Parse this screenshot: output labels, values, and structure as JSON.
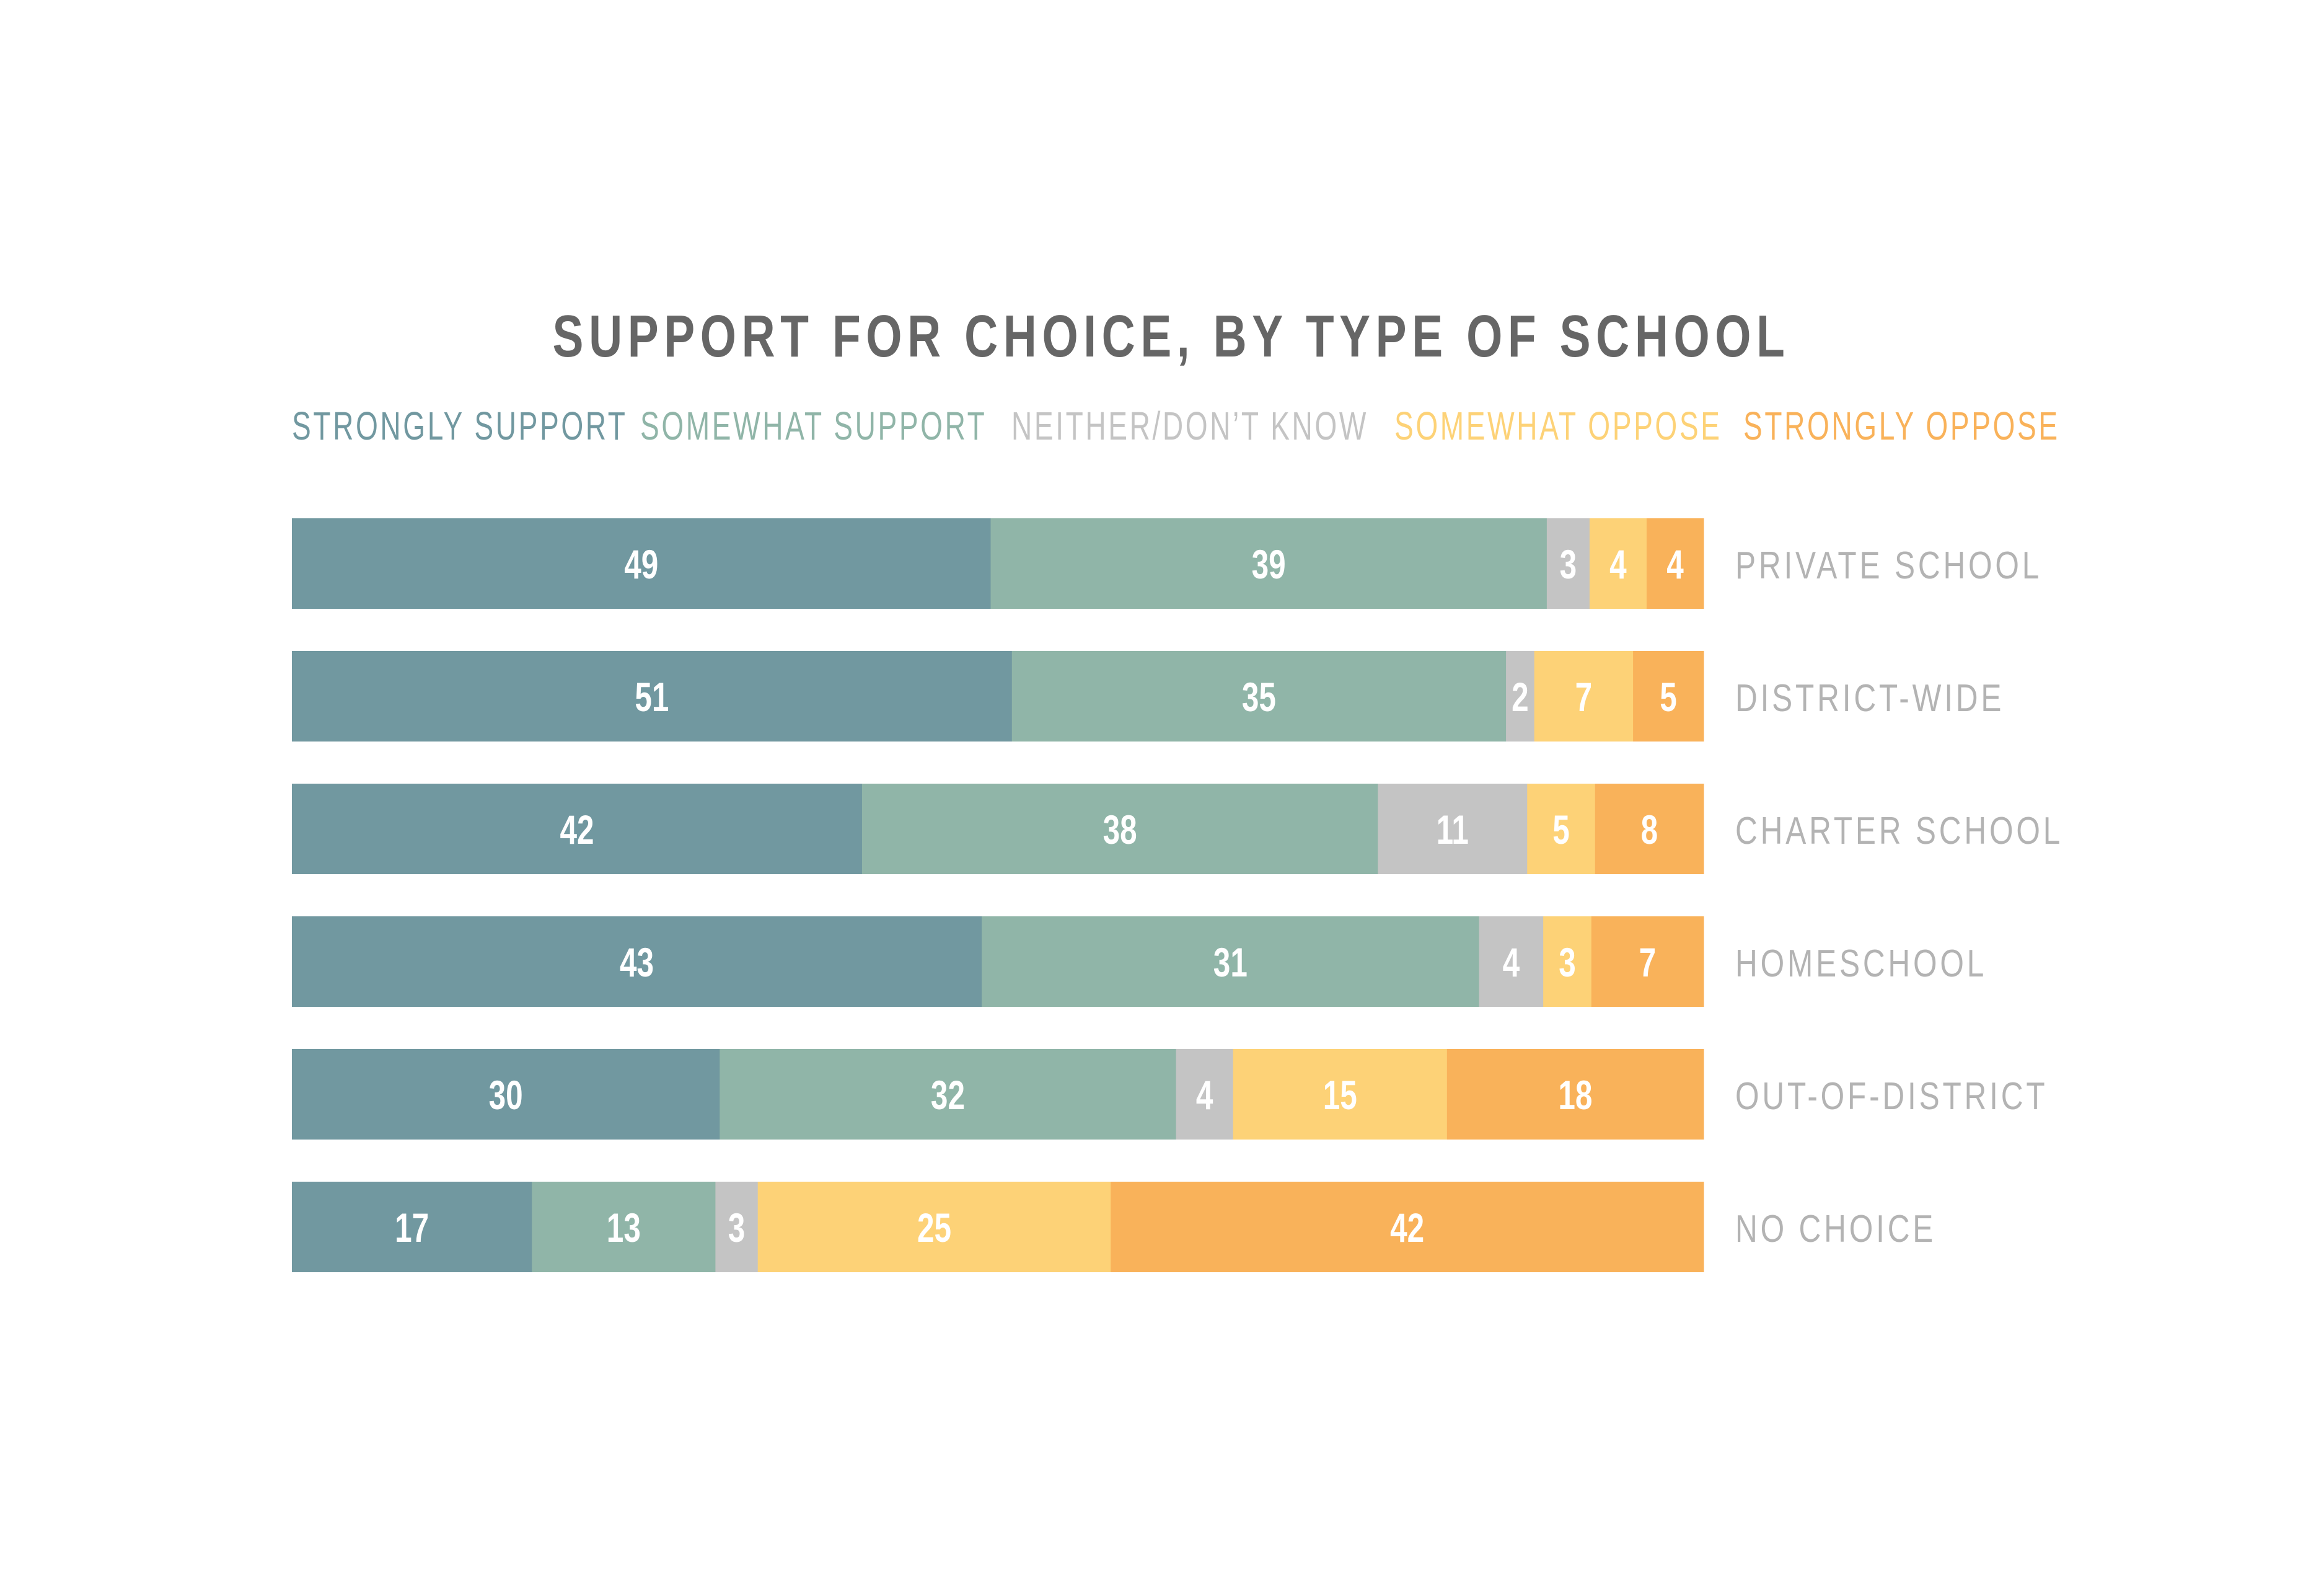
{
  "chart_data": {
    "type": "bar",
    "orientation": "horizontal",
    "stacked": true,
    "title": "SUPPORT FOR CHOICE, BY TYPE OF SCHOOL",
    "xlabel": "",
    "ylabel": "",
    "grid": false,
    "legend_position": "top",
    "categories": [
      "PRIVATE SCHOOL",
      "DISTRICT-WIDE",
      "CHARTER SCHOOL",
      "HOMESCHOOL",
      "OUT-OF-DISTRICT",
      "NO CHOICE"
    ],
    "series": [
      {
        "name": "STRONGLY SUPPORT",
        "color": "#7198a0",
        "values": [
          49,
          51,
          42,
          43,
          30,
          17
        ]
      },
      {
        "name": "SOMEWHAT SUPPORT",
        "color": "#90b5a8",
        "values": [
          39,
          35,
          38,
          31,
          32,
          13
        ]
      },
      {
        "name": "NEITHER/DON’T KNOW",
        "color": "#c4c4c4",
        "values": [
          3,
          2,
          11,
          4,
          4,
          3
        ]
      },
      {
        "name": "SOMEWHAT OPPOSE",
        "color": "#fdd277",
        "values": [
          4,
          7,
          5,
          3,
          15,
          25
        ]
      },
      {
        "name": "STRONGLY OPPOSE",
        "color": "#f9b25a",
        "values": [
          4,
          5,
          8,
          7,
          18,
          42
        ]
      }
    ]
  },
  "colors": {
    "title": "#666666",
    "category_label": "#b3b3b3",
    "segment_label": "#ffffff"
  }
}
